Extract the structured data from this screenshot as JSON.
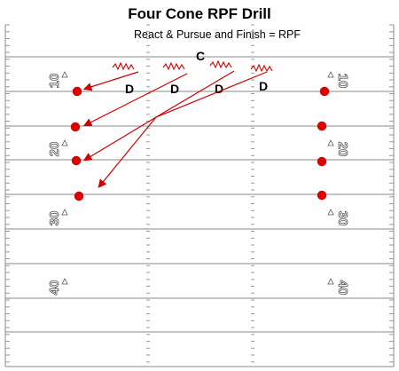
{
  "title": "Four Cone RPF Drill",
  "subtitle": "React & Pursue and Finish = RPF",
  "coach_label": "C",
  "defender_label": "D",
  "yard_numbers": [
    "10",
    "20",
    "30",
    "40"
  ],
  "colors": {
    "cone": "#e00000",
    "route": "#d00000",
    "line": "#888888",
    "text": "#000000"
  }
}
